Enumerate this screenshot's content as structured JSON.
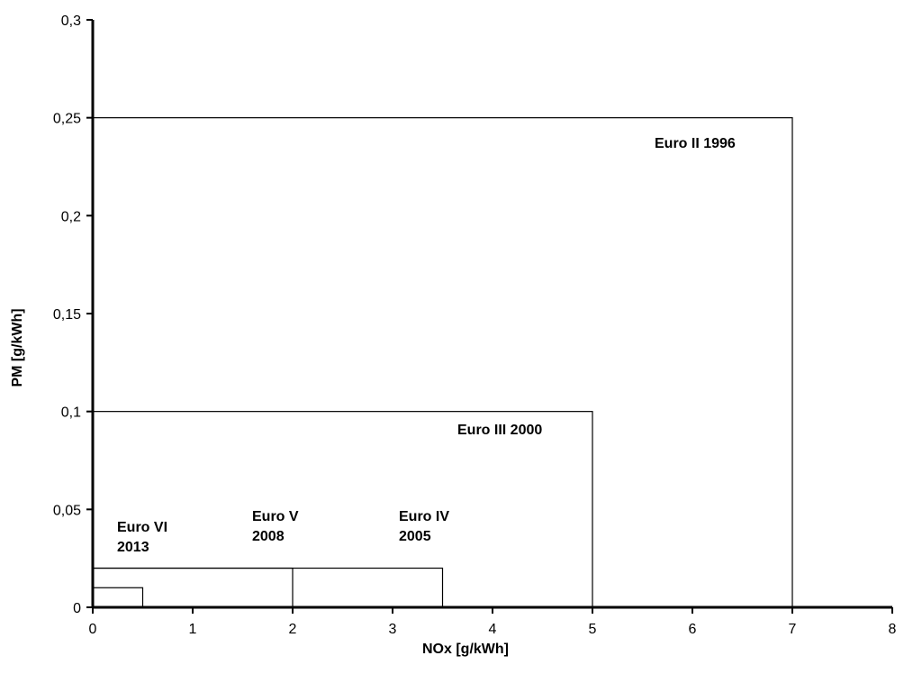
{
  "chart_data": {
    "type": "rectangle-limits",
    "xlabel": "NOx [g/kWh]",
    "ylabel": "PM [g/kWh]",
    "xlim": [
      0,
      8
    ],
    "ylim": [
      0,
      0.3
    ],
    "x_ticks": [
      0,
      1,
      2,
      3,
      4,
      5,
      6,
      7,
      8
    ],
    "y_ticks": [
      0,
      0.05,
      0.1,
      0.15,
      0.2,
      0.25,
      0.3
    ],
    "x_tick_labels": [
      "0",
      "1",
      "2",
      "3",
      "4",
      "5",
      "6",
      "7",
      "8"
    ],
    "y_tick_labels": [
      "0",
      "0,05",
      "0,1",
      "0,15",
      "0,2",
      "0,25",
      "0,3"
    ],
    "grid": false,
    "legend": "none",
    "series": [
      {
        "label_lines": [
          "Euro II 1996"
        ],
        "nox": 7.0,
        "pm": 0.25
      },
      {
        "label_lines": [
          "Euro III 2000"
        ],
        "nox": 5.0,
        "pm": 0.1
      },
      {
        "label_lines": [
          "Euro IV",
          "2005"
        ],
        "nox": 3.5,
        "pm": 0.02
      },
      {
        "label_lines": [
          "Euro V",
          "2008"
        ],
        "nox": 2.0,
        "pm": 0.02
      },
      {
        "label_lines": [
          "Euro VI",
          "2013"
        ],
        "nox": 0.5,
        "pm": 0.01
      }
    ]
  }
}
